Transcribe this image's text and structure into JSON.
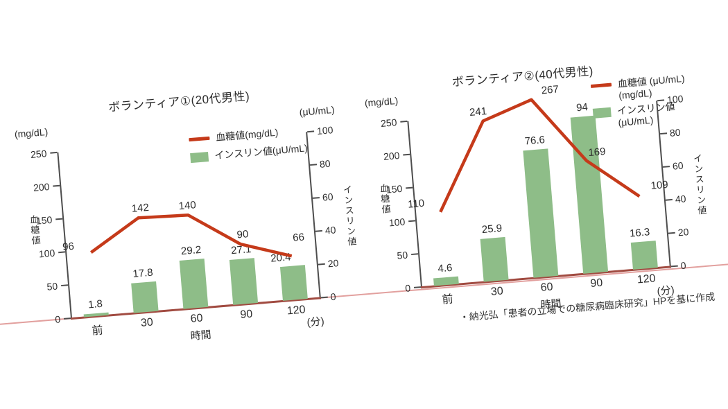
{
  "source_note": "・納光弘「患者の立場での糖尿病臨床研究」HPを基に作成",
  "colors": {
    "glucose_line": "#c53a1a",
    "insulin_bar": "#8ebd88",
    "axis": "#4d4d4d",
    "x_axis_line": "#a14b41",
    "baseline_extended": "#e2a09e",
    "text": "#2b2b2b",
    "background": "#ffffff"
  },
  "chart_data": [
    {
      "type": "line+bar",
      "title": "ボランティア①(20代男性)",
      "categories": [
        "前",
        "30",
        "60",
        "90",
        "120"
      ],
      "series": [
        {
          "name": "血糖値(mg/dL)",
          "type": "line",
          "axis": "left",
          "values": [
            96,
            142,
            140,
            90,
            66
          ]
        },
        {
          "name": "インスリン値(μU/mL)",
          "type": "bar",
          "axis": "right",
          "values": [
            1.8,
            17.8,
            29.2,
            27.1,
            20.4
          ]
        }
      ],
      "y_left": {
        "unit": "(mg/dL)",
        "title": "血糖値",
        "ticks": [
          250,
          200,
          150,
          100,
          50,
          0
        ],
        "range": [
          0,
          250
        ]
      },
      "y_right": {
        "unit": "(μU/mL)",
        "title": "インスリン値",
        "ticks": [
          100,
          80,
          60,
          40,
          20,
          0
        ],
        "range": [
          0,
          100
        ]
      },
      "x_axis": {
        "title": "時間",
        "unit": "(分)"
      },
      "legend": [
        {
          "label": "血糖値(mg/dL)",
          "label2": "",
          "marker": "line"
        },
        {
          "label": "インスリン値(μU/mL)",
          "label2": "",
          "marker": "bar"
        }
      ]
    },
    {
      "type": "line+bar",
      "title": "ボランティア②(40代男性)",
      "categories": [
        "前",
        "30",
        "60",
        "90",
        "120"
      ],
      "series": [
        {
          "name": "血糖値(mg/dL)",
          "type": "line",
          "axis": "left",
          "values": [
            110,
            241,
            267,
            169,
            109
          ]
        },
        {
          "name": "インスリン値(μU/mL)",
          "type": "bar",
          "axis": "right",
          "values": [
            4.6,
            25.9,
            76.6,
            94,
            16.3
          ]
        }
      ],
      "y_left": {
        "unit": "(mg/dL)",
        "title": "血糖値",
        "ticks": [
          250,
          200,
          150,
          100,
          50,
          0
        ],
        "range": [
          0,
          250
        ]
      },
      "y_right": {
        "unit": "(μU/mL)",
        "title": "インスリン値",
        "ticks": [
          100,
          80,
          60,
          40,
          20,
          0
        ],
        "range": [
          0,
          100
        ]
      },
      "x_axis": {
        "title": "時間",
        "unit": "(分)"
      },
      "legend": [
        {
          "label": "血糖値",
          "label2": "(mg/dL)",
          "marker": "line"
        },
        {
          "label": "インスリン値",
          "label2": "(μU/mL)",
          "marker": "bar"
        }
      ]
    }
  ]
}
